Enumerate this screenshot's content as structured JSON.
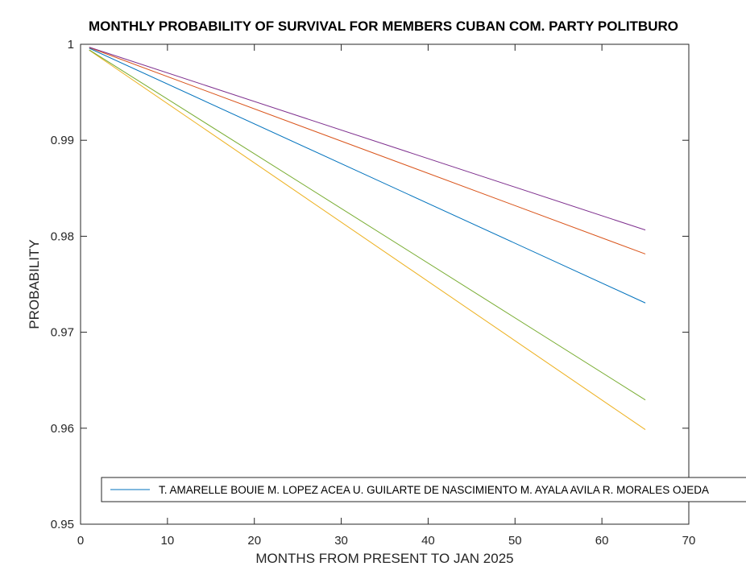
{
  "chart_data": {
    "type": "line",
    "title": "MONTHLY PROBABILITY OF SURVIVAL FOR MEMBERS CUBAN COM. PARTY POLITBURO",
    "xlabel": "MONTHS FROM PRESENT TO JAN 2025",
    "ylabel": "PROBABILITY",
    "xlim": [
      0,
      70
    ],
    "ylim": [
      0.95,
      1
    ],
    "xticks": [
      0,
      10,
      20,
      30,
      40,
      50,
      60,
      70
    ],
    "xtick_labels": [
      "0",
      "10",
      "20",
      "30",
      "40",
      "50",
      "60",
      "70"
    ],
    "yticks": [
      0.95,
      0.96,
      0.97,
      0.98,
      0.99,
      1
    ],
    "ytick_labels": [
      "0.95",
      "0.96",
      "0.97",
      "0.98",
      "0.99",
      "1"
    ],
    "grid": false,
    "legend_location": "bottom",
    "legend_text": "T. AMARELLE BOUIE  M. LOPEZ ACEA U. GUILARTE DE NASCIMIENTO M. AYALA AVILA R. MORALES OJEDA",
    "series": [
      {
        "name": "T. AMARELLE BOUIE",
        "color": "#0072BD",
        "x": [
          1,
          65
        ],
        "y": [
          0.99959,
          0.97305
        ]
      },
      {
        "name": "M. LOPEZ ACEA",
        "color": "#D95319",
        "x": [
          1,
          65
        ],
        "y": [
          0.99966,
          0.97815
        ]
      },
      {
        "name": "U. GUILARTE DE NASCIMIENTO",
        "color": "#EDB120",
        "x": [
          1,
          65
        ],
        "y": [
          0.99938,
          0.95985
        ]
      },
      {
        "name": "M. AYALA AVILA",
        "color": "#7E2F8E",
        "x": [
          1,
          65
        ],
        "y": [
          0.9997,
          0.98065
        ]
      },
      {
        "name": "R. MORALES OJEDA",
        "color": "#77AC30",
        "x": [
          1,
          65
        ],
        "y": [
          0.99942,
          0.96295
        ]
      }
    ]
  }
}
